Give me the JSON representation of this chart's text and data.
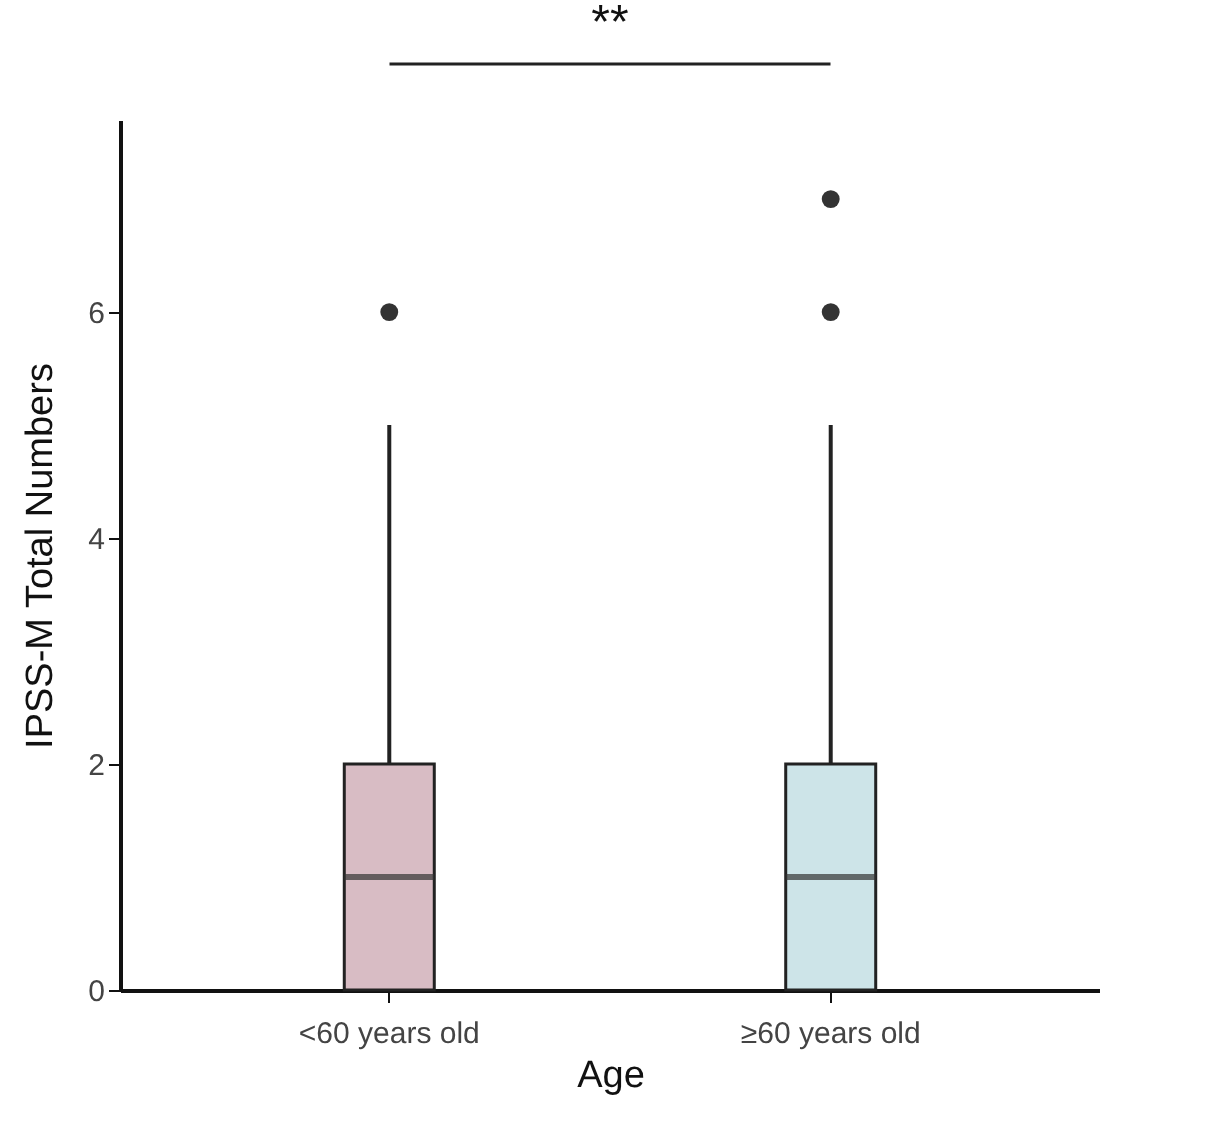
{
  "chart_data": {
    "type": "box",
    "xlabel": "Age",
    "ylabel": "IPSS-M Total Numbers",
    "categories": [
      "<60 years old",
      "≥60 years old"
    ],
    "colors": [
      "#d8bcc4",
      "#cde4e8"
    ],
    "boxes": [
      {
        "low": 0,
        "q1": 0,
        "median": 1,
        "q3": 2,
        "high": 5,
        "outliers": [
          6
        ]
      },
      {
        "low": 0,
        "q1": 0,
        "median": 1,
        "q3": 2,
        "high": 5,
        "outliers": [
          6,
          7
        ]
      }
    ],
    "ylim": [
      0,
      7.7
    ],
    "yticks": [
      0,
      2,
      4,
      6
    ],
    "grid": false,
    "annotations": [
      "**"
    ]
  }
}
